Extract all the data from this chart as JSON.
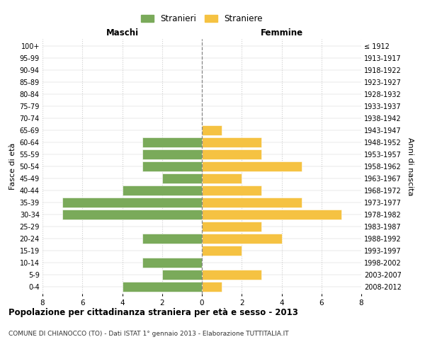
{
  "age_groups": [
    "0-4",
    "5-9",
    "10-14",
    "15-19",
    "20-24",
    "25-29",
    "30-34",
    "35-39",
    "40-44",
    "45-49",
    "50-54",
    "55-59",
    "60-64",
    "65-69",
    "70-74",
    "75-79",
    "80-84",
    "85-89",
    "90-94",
    "95-99",
    "100+"
  ],
  "anni_nascita": [
    "2008-2012",
    "2003-2007",
    "1998-2002",
    "1993-1997",
    "1988-1992",
    "1983-1987",
    "1978-1982",
    "1973-1977",
    "1968-1972",
    "1963-1967",
    "1958-1962",
    "1953-1957",
    "1948-1952",
    "1943-1947",
    "1938-1942",
    "1933-1937",
    "1928-1932",
    "1923-1927",
    "1918-1922",
    "1913-1917",
    "≤ 1912"
  ],
  "maschi": [
    4,
    2,
    3,
    0,
    3,
    0,
    7,
    7,
    4,
    2,
    3,
    3,
    3,
    0,
    0,
    0,
    0,
    0,
    0,
    0,
    0
  ],
  "femmine": [
    1,
    3,
    0,
    2,
    4,
    3,
    7,
    5,
    3,
    2,
    5,
    3,
    3,
    1,
    0,
    0,
    0,
    0,
    0,
    0,
    0
  ],
  "color_maschi": "#7aaa5a",
  "color_femmine": "#f5c242",
  "bar_height": 0.82,
  "xlim": 8,
  "title": "Popolazione per cittadinanza straniera per età e sesso - 2013",
  "subtitle": "COMUNE DI CHIANOCCO (TO) - Dati ISTAT 1° gennaio 2013 - Elaborazione TUTTITALIA.IT",
  "xlabel_maschi": "Maschi",
  "xlabel_femmine": "Femmine",
  "ylabel_left": "Fasce di età",
  "ylabel_right": "Anni di nascita",
  "legend_maschi": "Stranieri",
  "legend_femmine": "Straniere",
  "background_color": "#ffffff",
  "grid_color": "#cccccc"
}
